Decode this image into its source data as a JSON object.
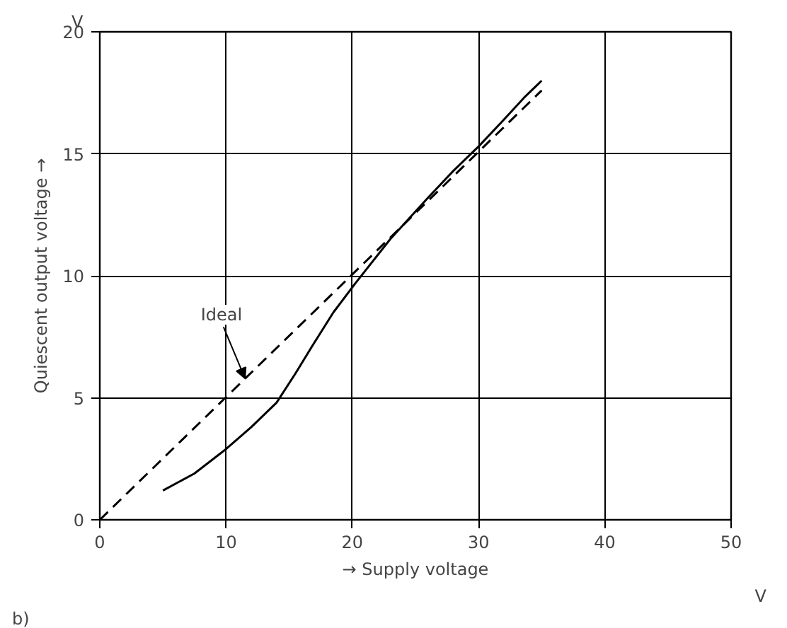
{
  "chart_data": {
    "type": "line",
    "xlabel": "→ Supply voltage",
    "ylabel": "Quiescent output voltage →",
    "xlim": [
      0,
      50
    ],
    "xticks": [
      0,
      10,
      20,
      30,
      40,
      50
    ],
    "ylim": [
      0,
      20
    ],
    "yticks": [
      0,
      5,
      10,
      15,
      20
    ],
    "grid": true,
    "series": [
      {
        "color": "#000000",
        "line_style": "solid",
        "x": [
          5,
          7.5,
          10,
          12,
          14,
          15.5,
          16.8,
          18.5,
          20.25,
          23,
          26,
          28,
          30,
          32,
          33.6,
          35
        ],
        "values": [
          1.2,
          1.9,
          2.9,
          3.8,
          4.8,
          6.0,
          7.1,
          8.5,
          9.7,
          11.5,
          13.2,
          14.3,
          15.3,
          16.4,
          17.3,
          18.0
        ]
      },
      {
        "color": "#000000",
        "line_style": "dashed",
        "x": [
          0,
          35
        ],
        "values": [
          0,
          17.6
        ]
      }
    ],
    "annotations": [
      "V",
      "V",
      "b)",
      {
        "text": "Ideal",
        "x": 11.5,
        "y": 5.8
      }
    ]
  }
}
